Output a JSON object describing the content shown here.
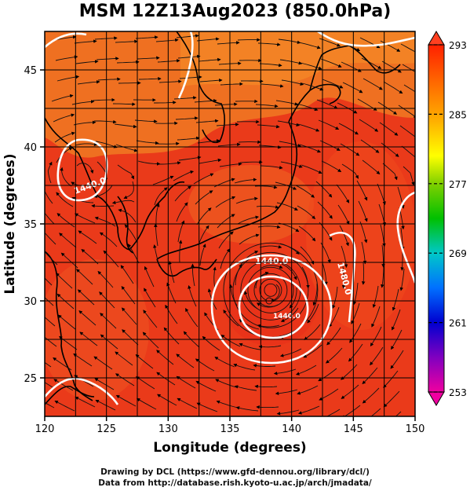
{
  "title": "MSM 12Z13Aug2023 (850.0hPa)",
  "footer": {
    "line1": "Drawing by DCL (https://www.gfd-dennou.org/library/dcl/)",
    "line2": "Data from http://database.rish.kyoto-u.ac.jp/arch/jmadata/"
  },
  "axes": {
    "xlabel": "Longitude (degrees)",
    "ylabel": "Latitude  (degrees)",
    "xlim": [
      120,
      150
    ],
    "ylim": [
      22.5,
      47.5
    ],
    "xticks": [
      "120",
      "125",
      "130",
      "135",
      "140",
      "145",
      "150"
    ],
    "yticks": [
      "25",
      "30",
      "35",
      "40",
      "45"
    ]
  },
  "colorbar": {
    "min": 253,
    "max": 293,
    "tick_labels": [
      "293",
      "285",
      "277",
      "269",
      "261",
      "253"
    ],
    "colors": [
      "#f00090",
      "#9000c0",
      "#0000d0",
      "#0070ff",
      "#00c8c8",
      "#00c000",
      "#90d000",
      "#ffff00",
      "#ffb000",
      "#ff7000",
      "#ff2000"
    ]
  },
  "contours": {
    "labels": [
      "1440.0",
      "1440.0",
      "1440.0",
      "1480.0"
    ]
  },
  "cyclone_center": {
    "lon": 138.3,
    "lat": 30.7
  },
  "colors": {
    "field_dark": "#ea3a1a",
    "field_light": "#f07722",
    "contour": "#ffffff",
    "coast": "#000000"
  }
}
